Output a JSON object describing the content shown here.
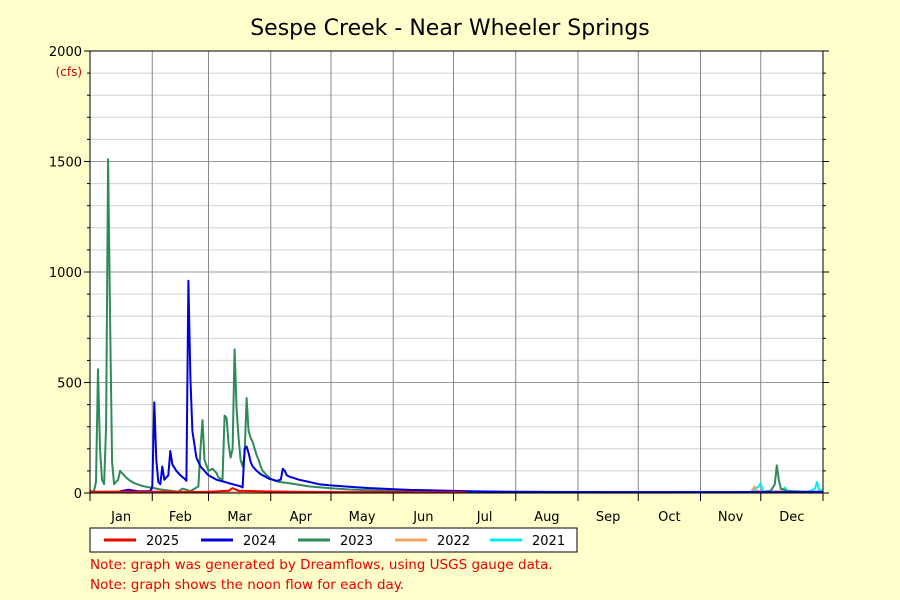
{
  "chart_data": {
    "type": "line",
    "title": "Sespe Creek - Near Wheeler Springs",
    "ylabel": "(cfs)",
    "ylim": [
      0,
      2000
    ],
    "yticks": [
      0,
      500,
      1000,
      1500,
      2000
    ],
    "xlim": [
      1,
      366
    ],
    "months": [
      "Jan",
      "Feb",
      "Mar",
      "Apr",
      "May",
      "Jun",
      "Jul",
      "Aug",
      "Sep",
      "Oct",
      "Nov",
      "Dec"
    ],
    "grid": true,
    "legend_position": "bottom",
    "series": [
      {
        "name": "2025",
        "color": "#ee0000",
        "points": [
          [
            1,
            5
          ],
          [
            20,
            6
          ],
          [
            40,
            5
          ],
          [
            60,
            6
          ],
          [
            70,
            10
          ],
          [
            72,
            22
          ],
          [
            75,
            10
          ],
          [
            90,
            7
          ],
          [
            110,
            5
          ],
          [
            130,
            4
          ],
          [
            150,
            4
          ],
          [
            170,
            3
          ],
          [
            188,
            3
          ]
        ]
      },
      {
        "name": "2024",
        "color": "#0000dd",
        "points": [
          [
            1,
            5
          ],
          [
            15,
            5
          ],
          [
            20,
            15
          ],
          [
            25,
            8
          ],
          [
            31,
            8
          ],
          [
            32,
            30
          ],
          [
            33,
            410
          ],
          [
            34,
            150
          ],
          [
            35,
            50
          ],
          [
            36,
            40
          ],
          [
            37,
            120
          ],
          [
            38,
            60
          ],
          [
            40,
            80
          ],
          [
            41,
            190
          ],
          [
            42,
            130
          ],
          [
            44,
            100
          ],
          [
            46,
            80
          ],
          [
            48,
            65
          ],
          [
            49,
            55
          ],
          [
            50,
            960
          ],
          [
            51,
            520
          ],
          [
            52,
            280
          ],
          [
            54,
            160
          ],
          [
            56,
            120
          ],
          [
            58,
            100
          ],
          [
            60,
            80
          ],
          [
            62,
            70
          ],
          [
            64,
            60
          ],
          [
            66,
            55
          ],
          [
            68,
            50
          ],
          [
            70,
            45
          ],
          [
            72,
            40
          ],
          [
            74,
            35
          ],
          [
            76,
            30
          ],
          [
            77,
            25
          ],
          [
            78,
            200
          ],
          [
            79,
            210
          ],
          [
            80,
            180
          ],
          [
            81,
            140
          ],
          [
            82,
            120
          ],
          [
            84,
            100
          ],
          [
            86,
            85
          ],
          [
            88,
            75
          ],
          [
            90,
            65
          ],
          [
            92,
            60
          ],
          [
            94,
            55
          ],
          [
            96,
            60
          ],
          [
            97,
            110
          ],
          [
            98,
            100
          ],
          [
            99,
            80
          ],
          [
            100,
            75
          ],
          [
            105,
            60
          ],
          [
            110,
            50
          ],
          [
            115,
            40
          ],
          [
            120,
            35
          ],
          [
            130,
            28
          ],
          [
            140,
            22
          ],
          [
            150,
            18
          ],
          [
            160,
            14
          ],
          [
            170,
            12
          ],
          [
            180,
            10
          ],
          [
            190,
            8
          ],
          [
            200,
            7
          ],
          [
            210,
            6
          ],
          [
            230,
            5
          ],
          [
            260,
            4
          ],
          [
            290,
            4
          ],
          [
            320,
            4
          ],
          [
            335,
            5
          ],
          [
            340,
            4
          ],
          [
            360,
            5
          ],
          [
            366,
            5
          ]
        ]
      },
      {
        "name": "2023",
        "color": "#2e8b57",
        "points": [
          [
            1,
            5
          ],
          [
            3,
            10
          ],
          [
            4,
            50
          ],
          [
            5,
            560
          ],
          [
            6,
            200
          ],
          [
            7,
            60
          ],
          [
            8,
            40
          ],
          [
            9,
            300
          ],
          [
            10,
            1510
          ],
          [
            11,
            780
          ],
          [
            12,
            140
          ],
          [
            13,
            40
          ],
          [
            14,
            50
          ],
          [
            15,
            60
          ],
          [
            16,
            100
          ],
          [
            17,
            90
          ],
          [
            19,
            70
          ],
          [
            21,
            55
          ],
          [
            23,
            45
          ],
          [
            25,
            38
          ],
          [
            27,
            32
          ],
          [
            29,
            28
          ],
          [
            31,
            25
          ],
          [
            33,
            22
          ],
          [
            35,
            18
          ],
          [
            37,
            15
          ],
          [
            39,
            12
          ],
          [
            41,
            10
          ],
          [
            43,
            8
          ],
          [
            45,
            6
          ],
          [
            47,
            20
          ],
          [
            49,
            15
          ],
          [
            51,
            8
          ],
          [
            55,
            30
          ],
          [
            56,
            200
          ],
          [
            57,
            330
          ],
          [
            58,
            150
          ],
          [
            60,
            100
          ],
          [
            62,
            110
          ],
          [
            64,
            90
          ],
          [
            65,
            70
          ],
          [
            67,
            60
          ],
          [
            68,
            350
          ],
          [
            69,
            340
          ],
          [
            70,
            220
          ],
          [
            71,
            160
          ],
          [
            72,
            200
          ],
          [
            73,
            650
          ],
          [
            74,
            380
          ],
          [
            75,
            250
          ],
          [
            76,
            150
          ],
          [
            77,
            120
          ],
          [
            78,
            170
          ],
          [
            79,
            430
          ],
          [
            80,
            280
          ],
          [
            81,
            250
          ],
          [
            82,
            230
          ],
          [
            83,
            200
          ],
          [
            84,
            170
          ],
          [
            85,
            150
          ],
          [
            86,
            120
          ],
          [
            87,
            100
          ],
          [
            89,
            80
          ],
          [
            91,
            65
          ],
          [
            93,
            55
          ],
          [
            95,
            50
          ],
          [
            100,
            45
          ],
          [
            110,
            30
          ],
          [
            120,
            22
          ],
          [
            130,
            16
          ],
          [
            140,
            12
          ],
          [
            150,
            10
          ],
          [
            160,
            9
          ],
          [
            170,
            8
          ],
          [
            180,
            6
          ],
          [
            190,
            5
          ],
          [
            200,
            5
          ],
          [
            220,
            4
          ],
          [
            250,
            4
          ],
          [
            280,
            4
          ],
          [
            310,
            4
          ],
          [
            335,
            4
          ],
          [
            340,
            10
          ],
          [
            342,
            40
          ],
          [
            343,
            125
          ],
          [
            344,
            60
          ],
          [
            345,
            20
          ],
          [
            348,
            10
          ],
          [
            352,
            8
          ],
          [
            360,
            5
          ],
          [
            366,
            5
          ]
        ]
      },
      {
        "name": "2022",
        "color": "#f4a460",
        "points": [
          [
            1,
            15
          ],
          [
            2,
            5
          ],
          [
            10,
            6
          ],
          [
            20,
            7
          ],
          [
            30,
            6
          ],
          [
            40,
            8
          ],
          [
            50,
            5
          ],
          [
            60,
            4
          ],
          [
            70,
            3
          ],
          [
            80,
            2
          ],
          [
            90,
            2
          ],
          [
            110,
            2
          ],
          [
            140,
            2
          ],
          [
            170,
            2
          ],
          [
            200,
            2
          ],
          [
            230,
            2
          ],
          [
            260,
            2
          ],
          [
            290,
            2
          ],
          [
            320,
            3
          ],
          [
            330,
            4
          ],
          [
            332,
            30
          ],
          [
            333,
            10
          ],
          [
            336,
            6
          ],
          [
            345,
            10
          ],
          [
            350,
            8
          ],
          [
            355,
            5
          ],
          [
            366,
            5
          ]
        ]
      },
      {
        "name": "2021",
        "color": "#00eeee",
        "points": [
          [
            330,
            3
          ],
          [
            334,
            30
          ],
          [
            335,
            45
          ],
          [
            336,
            10
          ],
          [
            337,
            5
          ],
          [
            340,
            3
          ],
          [
            345,
            8
          ],
          [
            347,
            25
          ],
          [
            348,
            10
          ],
          [
            350,
            5
          ],
          [
            355,
            4
          ],
          [
            358,
            6
          ],
          [
            360,
            10
          ],
          [
            362,
            20
          ],
          [
            363,
            50
          ],
          [
            364,
            15
          ],
          [
            366,
            10
          ]
        ]
      }
    ]
  },
  "notes": [
    "Note: graph was generated by Dreamflows, using USGS gauge data.",
    "Note: graph shows the noon flow for each day."
  ]
}
